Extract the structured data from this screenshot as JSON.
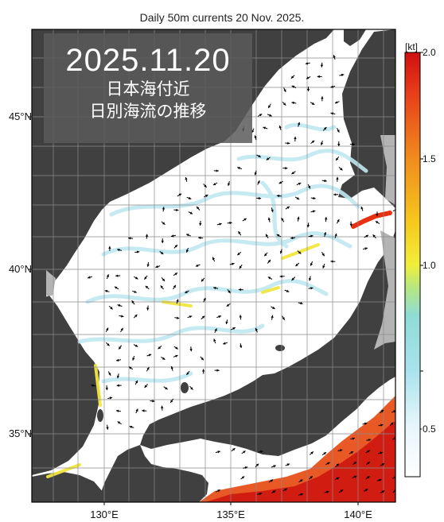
{
  "title": "Daily 50m currents 20 Nov. 2025.",
  "badge": {
    "date": "2025.11.20",
    "line1": "日本海付近",
    "line2": "日別海流の推移"
  },
  "axes": {
    "lat_labels": [
      "45°N",
      "40°N",
      "35°N"
    ],
    "lon_labels": [
      "130°E",
      "135°E",
      "140°E"
    ]
  },
  "colorbar": {
    "unit": "[kt]",
    "ticks": [
      "2.0",
      "1.5",
      "1.0",
      "0.5"
    ],
    "range": [
      0,
      2.0
    ],
    "colors": [
      "#ffffff",
      "#bfe8f0",
      "#7fd6e6",
      "#9fe38a",
      "#f0ef3a",
      "#f5c21a",
      "#f08a1a",
      "#e83010",
      "#d01010"
    ]
  },
  "colors": {
    "land": "#404040",
    "shelf": "#b0b0b0",
    "sea": "#ffffff",
    "grid": "#888888",
    "arrow": "#000000"
  }
}
